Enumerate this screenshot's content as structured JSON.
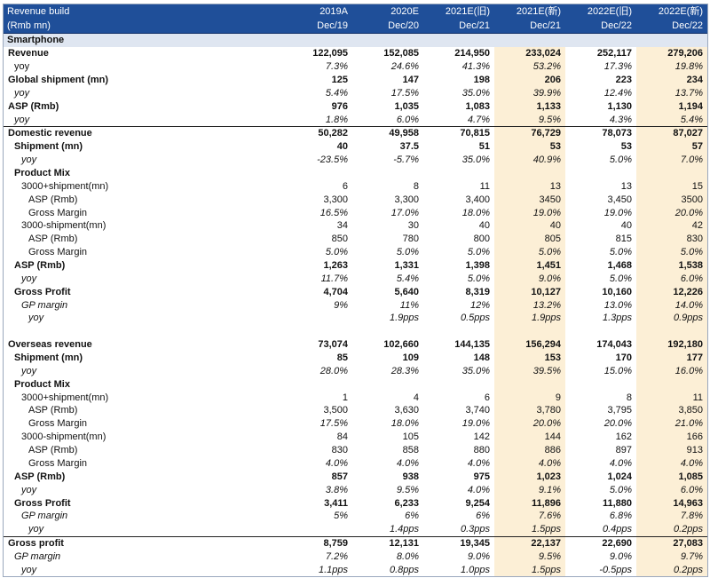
{
  "header": [
    [
      "Revenue build",
      "2019A",
      "2020E",
      "2021E(旧)",
      "2021E(新)",
      "2022E(旧)",
      "2022E(新)"
    ],
    [
      "(Rmb mn)",
      "Dec/19",
      "Dec/20",
      "Dec/21",
      "Dec/21",
      "Dec/22",
      "Dec/22"
    ]
  ],
  "rows": [
    {
      "label": "Smartphone"
    },
    {
      "label": "Revenue",
      "values": [
        "122,095",
        "152,085",
        "214,950",
        "233,024",
        "252,117",
        "279,206"
      ]
    },
    {
      "label": "yoy",
      "values": [
        "7.3%",
        "24.6%",
        "41.3%",
        "53.2%",
        "17.3%",
        "19.8%"
      ]
    },
    {
      "label": "Global shipment (mn)",
      "values": [
        "125",
        "147",
        "198",
        "206",
        "223",
        "234"
      ]
    },
    {
      "label": "yoy",
      "values": [
        "5.4%",
        "17.5%",
        "35.0%",
        "39.9%",
        "12.4%",
        "13.7%"
      ]
    },
    {
      "label": "ASP (Rmb)",
      "values": [
        "976",
        "1,035",
        "1,083",
        "1,133",
        "1,130",
        "1,194"
      ]
    },
    {
      "label": "yoy",
      "values": [
        "1.8%",
        "6.0%",
        "4.7%",
        "9.5%",
        "4.3%",
        "5.4%"
      ]
    },
    {
      "label": "Domestic revenue",
      "values": [
        "50,282",
        "49,958",
        "70,815",
        "76,729",
        "78,073",
        "87,027"
      ]
    },
    {
      "label": "Shipment (mn)",
      "values": [
        "40",
        "37.5",
        "51",
        "53",
        "53",
        "57"
      ]
    },
    {
      "label": "yoy",
      "values": [
        "-23.5%",
        "-5.7%",
        "35.0%",
        "40.9%",
        "5.0%",
        "7.0%"
      ]
    },
    {
      "label": "Product Mix"
    },
    {
      "label": "3000+shipment(mn)",
      "values": [
        "6",
        "8",
        "11",
        "13",
        "13",
        "15"
      ]
    },
    {
      "label": "ASP (Rmb)",
      "values": [
        "3,300",
        "3,300",
        "3,400",
        "3450",
        "3,450",
        "3500"
      ]
    },
    {
      "label": "Gross Margin",
      "values": [
        "16.5%",
        "17.0%",
        "18.0%",
        "19.0%",
        "19.0%",
        "20.0%"
      ]
    },
    {
      "label": "3000-shipment(mn)",
      "values": [
        "34",
        "30",
        "40",
        "40",
        "40",
        "42"
      ]
    },
    {
      "label": "ASP (Rmb)",
      "values": [
        "850",
        "780",
        "800",
        "805",
        "815",
        "830"
      ]
    },
    {
      "label": "Gross Margin",
      "values": [
        "5.0%",
        "5.0%",
        "5.0%",
        "5.0%",
        "5.0%",
        "5.0%"
      ]
    },
    {
      "label": "ASP (Rmb)",
      "values": [
        "1,263",
        "1,331",
        "1,398",
        "1,451",
        "1,468",
        "1,538"
      ]
    },
    {
      "label": "yoy",
      "values": [
        "11.7%",
        "5.4%",
        "5.0%",
        "9.0%",
        "5.0%",
        "6.0%"
      ]
    },
    {
      "label": "Gross Profit",
      "values": [
        "4,704",
        "5,640",
        "8,319",
        "10,127",
        "10,160",
        "12,226"
      ]
    },
    {
      "label": "GP margin",
      "values": [
        "9%",
        "11%",
        "12%",
        "13.2%",
        "13.0%",
        "14.0%"
      ]
    },
    {
      "label": "yoy",
      "values": [
        null,
        "1.9pps",
        "0.5pps",
        "1.9pps",
        "1.3pps",
        "0.9pps"
      ]
    },
    null,
    {
      "label": "Overseas revenue",
      "values": [
        "73,074",
        "102,660",
        "144,135",
        "156,294",
        "174,043",
        "192,180"
      ]
    },
    {
      "label": "Shipment (mn)",
      "values": [
        "85",
        "109",
        "148",
        "153",
        "170",
        "177"
      ]
    },
    {
      "label": "yoy",
      "values": [
        "28.0%",
        "28.3%",
        "35.0%",
        "39.5%",
        "15.0%",
        "16.0%"
      ]
    },
    {
      "label": "Product Mix"
    },
    {
      "label": "3000+shipment(mn)",
      "values": [
        "1",
        "4",
        "6",
        "9",
        "8",
        "11"
      ]
    },
    {
      "label": "ASP (Rmb)",
      "values": [
        "3,500",
        "3,630",
        "3,740",
        "3,780",
        "3,795",
        "3,850"
      ]
    },
    {
      "label": "Gross Margin",
      "values": [
        "17.5%",
        "18.0%",
        "19.0%",
        "20.0%",
        "20.0%",
        "21.0%"
      ]
    },
    {
      "label": "3000-shipment(mn)",
      "values": [
        "84",
        "105",
        "142",
        "144",
        "162",
        "166"
      ]
    },
    {
      "label": "ASP (Rmb)",
      "values": [
        "830",
        "858",
        "880",
        "886",
        "897",
        "913"
      ]
    },
    {
      "label": "Gross Margin",
      "values": [
        "4.0%",
        "4.0%",
        "4.0%",
        "4.0%",
        "4.0%",
        "4.0%"
      ]
    },
    {
      "label": "ASP (Rmb)",
      "values": [
        "857",
        "938",
        "975",
        "1,023",
        "1,024",
        "1,085"
      ]
    },
    {
      "label": "yoy",
      "values": [
        "3.8%",
        "9.5%",
        "4.0%",
        "9.1%",
        "5.0%",
        "6.0%"
      ]
    },
    {
      "label": "Gross Profit",
      "values": [
        "3,411",
        "6,233",
        "9,254",
        "11,896",
        "11,880",
        "14,963"
      ]
    },
    {
      "label": "GP margin",
      "values": [
        "5%",
        "6%",
        "6%",
        "7.6%",
        "6.8%",
        "7.8%"
      ]
    },
    {
      "label": "yoy",
      "values": [
        null,
        "1.4pps",
        "0.3pps",
        "1.5pps",
        "0.4pps",
        "0.2pps"
      ]
    },
    {
      "label": "Gross profit",
      "values": [
        "8,759",
        "12,131",
        "19,345",
        "22,137",
        "22,690",
        "27,083"
      ]
    },
    {
      "label": "GP margin",
      "values": [
        "7.2%",
        "8.0%",
        "9.0%",
        "9.5%",
        "9.0%",
        "9.7%"
      ]
    },
    {
      "label": "yoy",
      "values": [
        "1.1pps",
        "0.8pps",
        "1.0pps",
        "1.5pps",
        "-0.5pps",
        "0.2pps"
      ]
    }
  ]
}
